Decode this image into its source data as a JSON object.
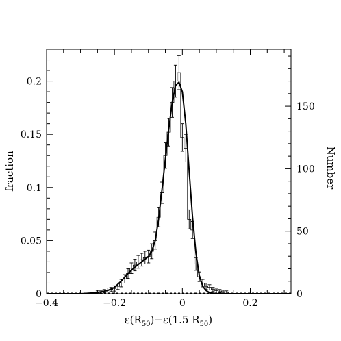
{
  "chart_data": {
    "type": "histogram",
    "xlabel": "ε(R",
    "xlabel_sub1": "50",
    "xlabel_mid": ")−ε(1.5 R",
    "xlabel_sub2": "50",
    "xlabel_end": ")",
    "ylabel_left": "fraction",
    "ylabel_right": "Number",
    "xlim": [
      -0.4,
      0.32
    ],
    "ylim_left": [
      0,
      0.23
    ],
    "ylim_right_per_fraction": 850,
    "x_ticks": [
      {
        "value": -0.4,
        "label": "−0.4"
      },
      {
        "value": -0.2,
        "label": "−0.2"
      },
      {
        "value": 0,
        "label": "0"
      },
      {
        "value": 0.2,
        "label": "0.2"
      }
    ],
    "y_ticks_left": [
      {
        "value": 0,
        "label": "0"
      },
      {
        "value": 0.05,
        "label": "0.05"
      },
      {
        "value": 0.1,
        "label": "0.1"
      },
      {
        "value": 0.15,
        "label": "0.15"
      },
      {
        "value": 0.2,
        "label": "0.2"
      }
    ],
    "y_ticks_right": [
      {
        "value": 0,
        "label": "0"
      },
      {
        "value": 50,
        "label": "50"
      },
      {
        "value": 100,
        "label": "100"
      },
      {
        "value": 150,
        "label": "150"
      }
    ],
    "bin_width": 0.01,
    "bins": [
      {
        "x": -0.25,
        "y": 0.0015,
        "err": 0.0012
      },
      {
        "x": -0.24,
        "y": 0.0015,
        "err": 0.0012
      },
      {
        "x": -0.23,
        "y": 0.0025,
        "err": 0.0015
      },
      {
        "x": -0.22,
        "y": 0.0035,
        "err": 0.002
      },
      {
        "x": -0.21,
        "y": 0.004,
        "err": 0.002
      },
      {
        "x": -0.2,
        "y": 0.005,
        "err": 0.0025
      },
      {
        "x": -0.19,
        "y": 0.007,
        "err": 0.003
      },
      {
        "x": -0.18,
        "y": 0.01,
        "err": 0.0035
      },
      {
        "x": -0.17,
        "y": 0.014,
        "err": 0.004
      },
      {
        "x": -0.16,
        "y": 0.019,
        "err": 0.0045
      },
      {
        "x": -0.15,
        "y": 0.024,
        "err": 0.005
      },
      {
        "x": -0.14,
        "y": 0.027,
        "err": 0.0055
      },
      {
        "x": -0.13,
        "y": 0.03,
        "err": 0.006
      },
      {
        "x": -0.12,
        "y": 0.032,
        "err": 0.006
      },
      {
        "x": -0.11,
        "y": 0.034,
        "err": 0.006
      },
      {
        "x": -0.1,
        "y": 0.035,
        "err": 0.006
      },
      {
        "x": -0.09,
        "y": 0.04,
        "err": 0.007
      },
      {
        "x": -0.08,
        "y": 0.05,
        "err": 0.008
      },
      {
        "x": -0.07,
        "y": 0.072,
        "err": 0.009
      },
      {
        "x": -0.06,
        "y": 0.095,
        "err": 0.01
      },
      {
        "x": -0.05,
        "y": 0.13,
        "err": 0.012
      },
      {
        "x": -0.04,
        "y": 0.152,
        "err": 0.013
      },
      {
        "x": -0.03,
        "y": 0.18,
        "err": 0.014
      },
      {
        "x": -0.02,
        "y": 0.2,
        "err": 0.015
      },
      {
        "x": -0.01,
        "y": 0.208,
        "err": 0.016
      },
      {
        "x": 0.0,
        "y": 0.147,
        "err": 0.013
      },
      {
        "x": 0.01,
        "y": 0.137,
        "err": 0.013
      },
      {
        "x": 0.02,
        "y": 0.07,
        "err": 0.009
      },
      {
        "x": 0.03,
        "y": 0.06,
        "err": 0.008
      },
      {
        "x": 0.04,
        "y": 0.028,
        "err": 0.006
      },
      {
        "x": 0.05,
        "y": 0.016,
        "err": 0.0045
      },
      {
        "x": 0.06,
        "y": 0.01,
        "err": 0.0035
      },
      {
        "x": 0.07,
        "y": 0.007,
        "err": 0.003
      },
      {
        "x": 0.08,
        "y": 0.006,
        "err": 0.0025
      },
      {
        "x": 0.09,
        "y": 0.004,
        "err": 0.002
      },
      {
        "x": 0.1,
        "y": 0.003,
        "err": 0.0015
      },
      {
        "x": 0.11,
        "y": 0.0025,
        "err": 0.0015
      },
      {
        "x": 0.12,
        "y": 0.002,
        "err": 0.0012
      },
      {
        "x": 0.13,
        "y": 0.0015,
        "err": 0.0012
      }
    ],
    "fit_curve": {
      "type": "line",
      "x": [
        -0.4,
        -0.3,
        -0.25,
        -0.22,
        -0.2,
        -0.18,
        -0.16,
        -0.14,
        -0.12,
        -0.1,
        -0.09,
        -0.08,
        -0.07,
        -0.06,
        -0.05,
        -0.04,
        -0.03,
        -0.02,
        -0.01,
        0.0,
        0.01,
        0.02,
        0.03,
        0.04,
        0.05,
        0.06,
        0.07,
        0.08,
        0.1,
        0.12,
        0.15,
        0.2,
        0.32
      ],
      "y": [
        0.0,
        0.0,
        0.001,
        0.003,
        0.006,
        0.012,
        0.019,
        0.025,
        0.03,
        0.035,
        0.04,
        0.05,
        0.07,
        0.098,
        0.127,
        0.155,
        0.18,
        0.196,
        0.199,
        0.19,
        0.16,
        0.115,
        0.072,
        0.038,
        0.017,
        0.007,
        0.003,
        0.001,
        0.0,
        0.0,
        0.0,
        0.0,
        0.0
      ]
    }
  }
}
